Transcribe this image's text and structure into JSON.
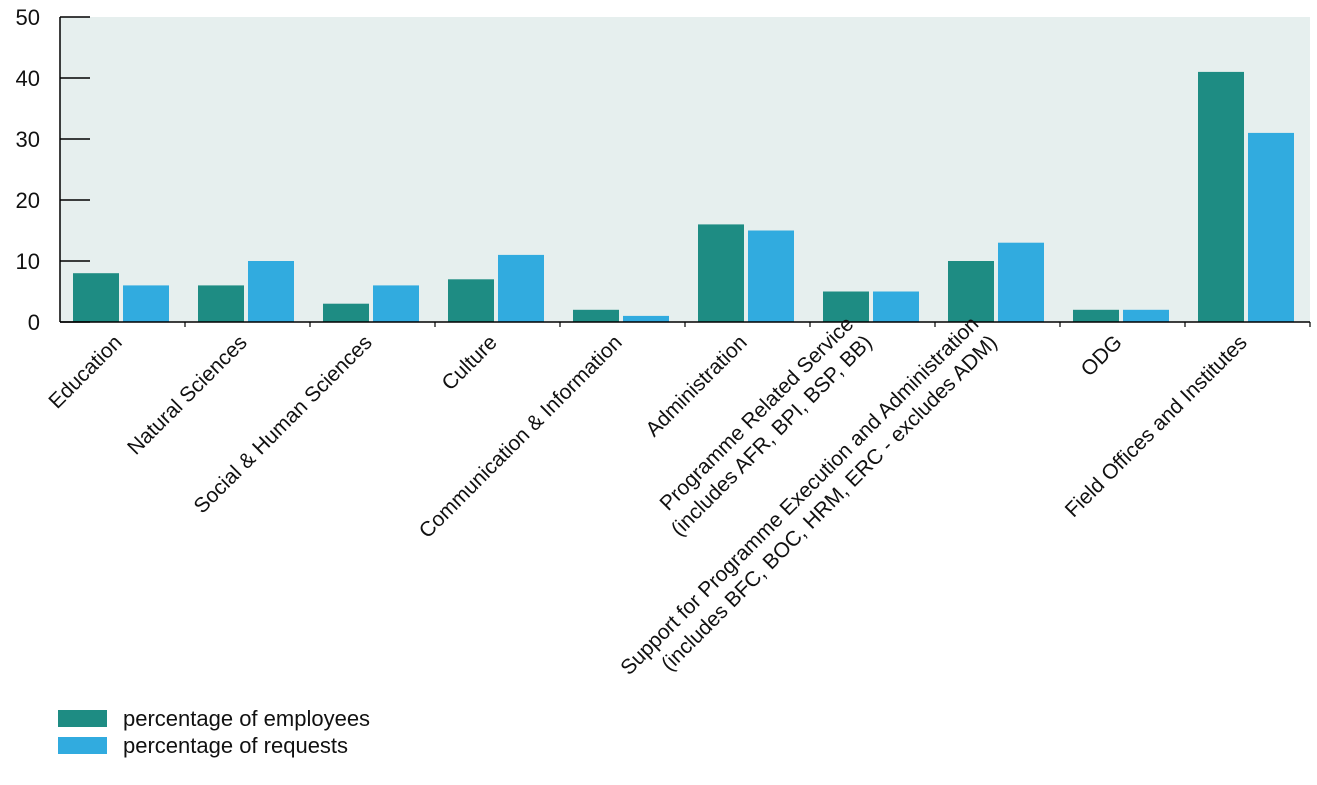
{
  "chart_data": {
    "type": "bar",
    "title": "",
    "xlabel": "",
    "ylabel": "",
    "ylim": [
      0,
      50
    ],
    "yticks": [
      0,
      10,
      20,
      30,
      40,
      50
    ],
    "grid": false,
    "legend_position": "bottom-left",
    "categories": [
      [
        "Education"
      ],
      [
        "Natural Sciences"
      ],
      [
        "Social & Human Sciences"
      ],
      [
        "Culture"
      ],
      [
        "Communication & Information"
      ],
      [
        "Administration"
      ],
      [
        "Programme Related Service",
        "(includes AFR, BPI, BSP, BB)"
      ],
      [
        "Support for Programme Execution and Administration",
        "(includes BFC, BOC, HRM, ERC - excludes ADM)"
      ],
      [
        "ODG"
      ],
      [
        "Field Offices and Institutes"
      ]
    ],
    "series": [
      {
        "name": "percentage of employees",
        "color": "#1e8c83",
        "values": [
          8,
          6,
          3,
          7,
          2,
          16,
          5,
          10,
          2,
          41
        ]
      },
      {
        "name": "percentage of requests",
        "color": "#31abdf",
        "values": [
          6,
          10,
          6,
          11,
          1,
          15,
          5,
          13,
          2,
          31
        ]
      }
    ],
    "plot_background": "#e6efee"
  }
}
